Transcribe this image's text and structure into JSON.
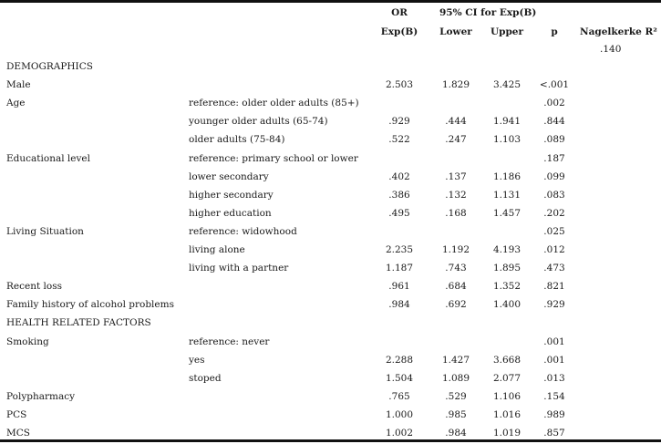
{
  "headers": {
    "or_top": "OR",
    "ci_top": "95% CI for Exp(B)",
    "or": "Exp(B)",
    "lower": "Lower",
    "upper": "Upper",
    "p": "p",
    "nagelkerke": "Nagelkerke R²",
    "nagelkerke_value": ".140"
  },
  "rows": [
    {
      "label": "DEMOGRAPHICS",
      "sub": "",
      "or": "",
      "lower": "",
      "upper": "",
      "p": ""
    },
    {
      "label": "Male",
      "sub": "",
      "or": "2.503",
      "lower": "1.829",
      "upper": "3.425",
      "p": "<.001"
    },
    {
      "label": "Age",
      "sub": "reference: older older adults (85+)",
      "or": "",
      "lower": "",
      "upper": "",
      "p": ".002"
    },
    {
      "label": "",
      "sub": "younger older adults (65-74)",
      "or": ".929",
      "lower": ".444",
      "upper": "1.941",
      "p": ".844"
    },
    {
      "label": "",
      "sub": "older adults (75-84)",
      "or": ".522",
      "lower": ".247",
      "upper": "1.103",
      "p": ".089"
    },
    {
      "label": "Educational level",
      "sub": "reference: primary school or lower",
      "or": "",
      "lower": "",
      "upper": "",
      "p": ".187"
    },
    {
      "label": "",
      "sub": "lower secondary",
      "or": ".402",
      "lower": ".137",
      "upper": "1.186",
      "p": ".099"
    },
    {
      "label": "",
      "sub": "higher secondary",
      "or": ".386",
      "lower": ".132",
      "upper": "1.131",
      "p": ".083"
    },
    {
      "label": "",
      "sub": "higher education",
      "or": ".495",
      "lower": ".168",
      "upper": "1.457",
      "p": ".202"
    },
    {
      "label": "Living Situation",
      "sub": "reference: widowhood",
      "or": "",
      "lower": "",
      "upper": "",
      "p": ".025"
    },
    {
      "label": "",
      "sub": "living alone",
      "or": "2.235",
      "lower": "1.192",
      "upper": "4.193",
      "p": ".012"
    },
    {
      "label": "",
      "sub": "living with a partner",
      "or": "1.187",
      "lower": ".743",
      "upper": "1.895",
      "p": ".473"
    },
    {
      "label": "Recent loss",
      "sub": "",
      "or": ".961",
      "lower": ".684",
      "upper": "1.352",
      "p": ".821"
    },
    {
      "label": "Family history of alcohol problems",
      "sub": "",
      "or": ".984",
      "lower": ".692",
      "upper": "1.400",
      "p": ".929"
    },
    {
      "label": "HEALTH RELATED FACTORS",
      "sub": "",
      "or": "",
      "lower": "",
      "upper": "",
      "p": ""
    },
    {
      "label": "Smoking",
      "sub": "reference: never",
      "or": "",
      "lower": "",
      "upper": "",
      "p": ".001"
    },
    {
      "label": "",
      "sub": "yes",
      "or": "2.288",
      "lower": "1.427",
      "upper": "3.668",
      "p": ".001"
    },
    {
      "label": "",
      "sub": "stoped",
      "or": "1.504",
      "lower": "1.089",
      "upper": "2.077",
      "p": ".013"
    },
    {
      "label": "Polypharmacy",
      "sub": "",
      "or": ".765",
      "lower": ".529",
      "upper": "1.106",
      "p": ".154"
    },
    {
      "label": "PCS",
      "sub": "",
      "or": "1.000",
      "lower": ".985",
      "upper": "1.016",
      "p": ".989"
    },
    {
      "label": "MCS",
      "sub": "",
      "or": "1.002",
      "lower": ".984",
      "upper": "1.019",
      "p": ".857"
    }
  ]
}
